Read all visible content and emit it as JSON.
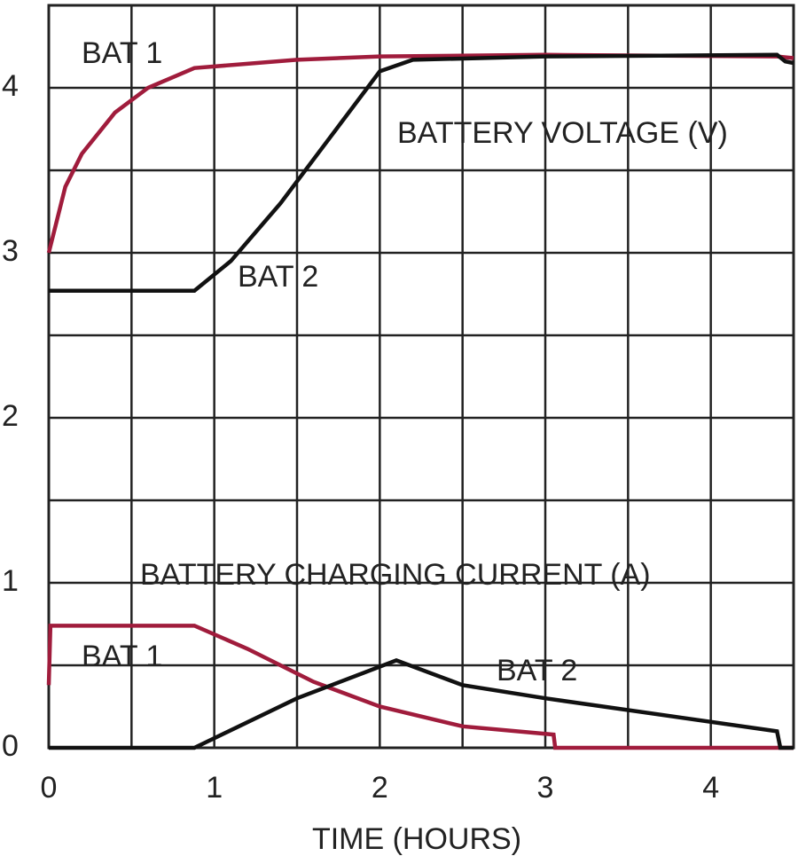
{
  "chart_data": {
    "type": "line",
    "x_label": "TIME (HOURS)",
    "xlim": [
      0,
      4.5
    ],
    "ylim": [
      0,
      4.5
    ],
    "xticks": [
      0,
      1,
      2,
      3,
      4
    ],
    "yticks": [
      0,
      1,
      2,
      3,
      4
    ],
    "grid": true,
    "annotations": [
      "BATTERY VOLTAGE (V)",
      "BATTERY CHARGING CURRENT (A)"
    ],
    "series": [
      {
        "name": "BAT 1",
        "color": "#a01c3c",
        "x": [
          0,
          0.1,
          0.2,
          0.4,
          0.6,
          0.88,
          1.5,
          2,
          3,
          4.4,
          4.5
        ],
        "values": [
          3.0,
          3.4,
          3.6,
          3.85,
          4.0,
          4.12,
          4.17,
          4.19,
          4.2,
          4.19,
          4.18
        ]
      },
      {
        "name": "BAT 2",
        "color": "#111111",
        "x": [
          0,
          0.88,
          1.1,
          1.4,
          1.7,
          2.0,
          2.2,
          3,
          4.4,
          4.45,
          4.5
        ],
        "values": [
          2.77,
          2.77,
          2.95,
          3.3,
          3.7,
          4.1,
          4.17,
          4.19,
          4.2,
          4.16,
          4.15
        ]
      },
      {
        "name": "BAT 1",
        "color": "#a01c3c",
        "x": [
          0,
          0.01,
          0.88,
          1.2,
          1.6,
          2,
          2.5,
          3.05,
          3.06,
          4.5
        ],
        "values": [
          0.38,
          0.74,
          0.74,
          0.6,
          0.4,
          0.25,
          0.13,
          0.08,
          0,
          0
        ]
      },
      {
        "name": "BAT 2",
        "color": "#111111",
        "x": [
          0,
          0.88,
          1.5,
          2.1,
          2.5,
          3,
          4.4,
          4.42,
          4.5
        ],
        "values": [
          0,
          0,
          0.3,
          0.53,
          0.38,
          0.3,
          0.1,
          0,
          0
        ]
      }
    ]
  }
}
